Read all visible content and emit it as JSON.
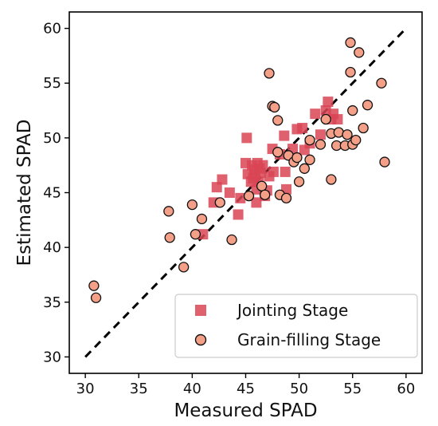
{
  "chart_data": {
    "type": "scatter",
    "title": "",
    "xlabel": "Measured SPAD",
    "ylabel": "Estimated  SPAD",
    "xlim": [
      28.5,
      61.5
    ],
    "ylim": [
      28.5,
      61.5
    ],
    "xticks": [
      "30",
      "35",
      "40",
      "45",
      "50",
      "55",
      "60"
    ],
    "yticks": [
      "30",
      "35",
      "40",
      "45",
      "50",
      "55",
      "60"
    ],
    "grid": false,
    "legend_position": "lower-right",
    "reference_line": {
      "style": "dashed",
      "color": "#000000",
      "from": [
        30,
        30
      ],
      "to": [
        60,
        60
      ]
    },
    "series": [
      {
        "name": "Jointing Stage",
        "marker": "square",
        "color": "#d94555",
        "points": [
          [
            41.0,
            41.2
          ],
          [
            42.0,
            44.1
          ],
          [
            42.3,
            45.5
          ],
          [
            42.8,
            46.2
          ],
          [
            43.5,
            45.0
          ],
          [
            44.3,
            43.0
          ],
          [
            44.5,
            44.5
          ],
          [
            45.0,
            47.7
          ],
          [
            45.1,
            50.0
          ],
          [
            45.2,
            46.7
          ],
          [
            45.5,
            46.0
          ],
          [
            45.6,
            47.5
          ],
          [
            45.7,
            46.3
          ],
          [
            45.8,
            47.1
          ],
          [
            45.9,
            46.6
          ],
          [
            46.0,
            45.3
          ],
          [
            46.0,
            44.1
          ],
          [
            46.1,
            47.7
          ],
          [
            46.2,
            46.0
          ],
          [
            46.3,
            47.2
          ],
          [
            46.4,
            46.8
          ],
          [
            46.6,
            47.5
          ],
          [
            46.8,
            44.7
          ],
          [
            47.0,
            45.2
          ],
          [
            47.2,
            46.5
          ],
          [
            47.5,
            49.0
          ],
          [
            47.6,
            46.9
          ],
          [
            48.2,
            48.5
          ],
          [
            48.6,
            50.2
          ],
          [
            48.7,
            46.9
          ],
          [
            48.8,
            45.3
          ],
          [
            49.4,
            49.0
          ],
          [
            49.8,
            50.8
          ],
          [
            50.3,
            50.9
          ],
          [
            50.5,
            48.9
          ],
          [
            51.0,
            49.5
          ],
          [
            51.5,
            52.2
          ],
          [
            52.0,
            50.3
          ],
          [
            52.5,
            52.5
          ],
          [
            52.7,
            53.3
          ],
          [
            53.0,
            51.7
          ],
          [
            53.2,
            52.2
          ],
          [
            53.6,
            51.7
          ]
        ]
      },
      {
        "name": "Grain-filling Stage",
        "marker": "circle",
        "color": "#f4a088",
        "points": [
          [
            30.8,
            36.5
          ],
          [
            31.0,
            35.4
          ],
          [
            37.8,
            43.3
          ],
          [
            37.9,
            40.9
          ],
          [
            39.2,
            38.2
          ],
          [
            40.0,
            43.9
          ],
          [
            40.3,
            41.2
          ],
          [
            40.9,
            42.6
          ],
          [
            42.6,
            44.1
          ],
          [
            43.7,
            40.7
          ],
          [
            45.3,
            44.7
          ],
          [
            46.5,
            45.6
          ],
          [
            46.8,
            44.8
          ],
          [
            47.2,
            55.9
          ],
          [
            47.5,
            52.9
          ],
          [
            47.7,
            52.8
          ],
          [
            48.0,
            51.6
          ],
          [
            48.0,
            48.7
          ],
          [
            48.2,
            44.8
          ],
          [
            48.8,
            44.5
          ],
          [
            49.0,
            48.4
          ],
          [
            49.5,
            47.8
          ],
          [
            49.8,
            48.2
          ],
          [
            50.0,
            46.0
          ],
          [
            50.5,
            47.2
          ],
          [
            51.0,
            49.8
          ],
          [
            51.0,
            48.0
          ],
          [
            52.0,
            49.4
          ],
          [
            52.5,
            51.7
          ],
          [
            53.0,
            50.4
          ],
          [
            53.0,
            46.2
          ],
          [
            53.5,
            49.3
          ],
          [
            53.7,
            50.5
          ],
          [
            54.3,
            49.3
          ],
          [
            54.5,
            50.3
          ],
          [
            54.8,
            58.7
          ],
          [
            54.8,
            56.0
          ],
          [
            55.0,
            49.4
          ],
          [
            55.0,
            52.5
          ],
          [
            55.3,
            49.8
          ],
          [
            55.6,
            57.8
          ],
          [
            56.0,
            50.9
          ],
          [
            56.4,
            53.0
          ],
          [
            57.7,
            55.0
          ],
          [
            58.0,
            47.8
          ]
        ]
      }
    ]
  }
}
